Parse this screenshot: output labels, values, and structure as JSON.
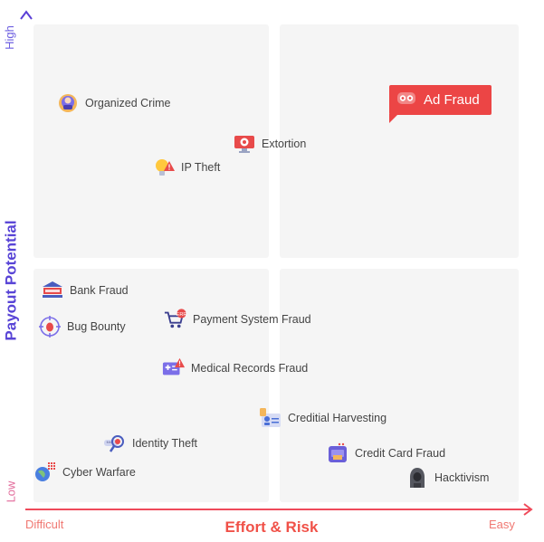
{
  "axes": {
    "y_title": "Payout Potential",
    "x_title": "Effort & Risk",
    "y_high": "High",
    "y_low": "Low",
    "x_difficult": "Difficult",
    "x_easy": "Easy"
  },
  "colors": {
    "y_axis": "#5844d6",
    "x_axis": "#f05148",
    "highlight": "#ec4545",
    "quadrant_bg": "#f5f5f5"
  },
  "items": {
    "organized_crime": {
      "label": "Organized Crime",
      "icon": "criminal-face-icon"
    },
    "ad_fraud": {
      "label": "Ad Fraud",
      "icon": "robot-eyes-icon"
    },
    "extortion": {
      "label": "Extortion",
      "icon": "monitor-target-icon"
    },
    "ip_theft": {
      "label": "IP Theft",
      "icon": "lightbulb-warning-icon"
    },
    "bank_fraud": {
      "label": "Bank Fraud",
      "icon": "bank-icon"
    },
    "bug_bounty": {
      "label": "Bug Bounty",
      "icon": "bug-crosshair-icon"
    },
    "payment_system_fraud": {
      "label": "Payment System Fraud",
      "icon": "cart-error-icon"
    },
    "medical_records_fraud": {
      "label": "Medical Records Fraud",
      "icon": "medical-card-warning-icon"
    },
    "credential_harvesting": {
      "label": "Creditial Harvesting",
      "icon": "id-badge-icon"
    },
    "identity_theft": {
      "label": "Identity Theft",
      "icon": "password-magnifier-icon"
    },
    "credit_card_fraud": {
      "label": "Credit Card Fraud",
      "icon": "card-reader-icon"
    },
    "cyber_warfare": {
      "label": "Cyber Warfare",
      "icon": "globe-grid-icon"
    },
    "hacktivism": {
      "label": "Hacktivism",
      "icon": "hooded-hacker-icon"
    }
  }
}
